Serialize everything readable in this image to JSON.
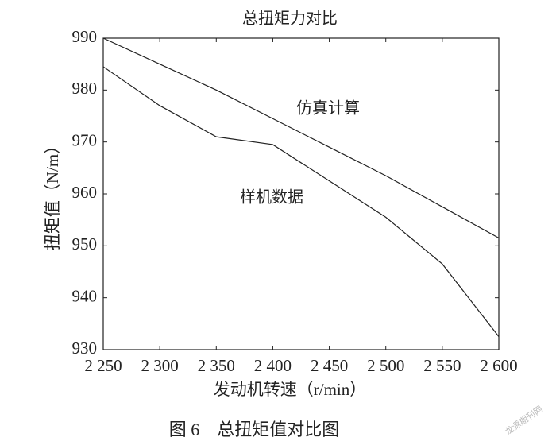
{
  "chart_data": {
    "type": "line",
    "title": "总扭矩力对比",
    "x_label": "发动机转速（r/min）",
    "y_label": "扭矩值（N/m）",
    "x": [
      2250,
      2300,
      2350,
      2400,
      2450,
      2500,
      2550,
      2600
    ],
    "series": [
      {
        "name": "仿真计算",
        "color": "#222222",
        "values": [
          990,
          985,
          980,
          974.5,
          969,
          963.5,
          957.5,
          951.5
        ]
      },
      {
        "name": "样机数据",
        "color": "#222222",
        "values": [
          984.5,
          977,
          971,
          969.5,
          962.5,
          955.5,
          946.5,
          932.5
        ]
      }
    ],
    "xlim": [
      2250,
      2600
    ],
    "xticks": [
      {
        "value": 2250,
        "label": "2 250"
      },
      {
        "value": 2300,
        "label": "2 300"
      },
      {
        "value": 2350,
        "label": "2 350"
      },
      {
        "value": 2400,
        "label": "2 400"
      },
      {
        "value": 2450,
        "label": "2 450"
      },
      {
        "value": 2500,
        "label": "2 500"
      },
      {
        "value": 2550,
        "label": "2 550"
      },
      {
        "value": 2600,
        "label": "2 600"
      }
    ],
    "ylim": [
      930,
      990
    ],
    "yticks": [
      930,
      940,
      950,
      960,
      970,
      980,
      990
    ],
    "grid": false,
    "caption": "图 6　总扭矩值对比图",
    "watermark": "龙源期刊网"
  }
}
